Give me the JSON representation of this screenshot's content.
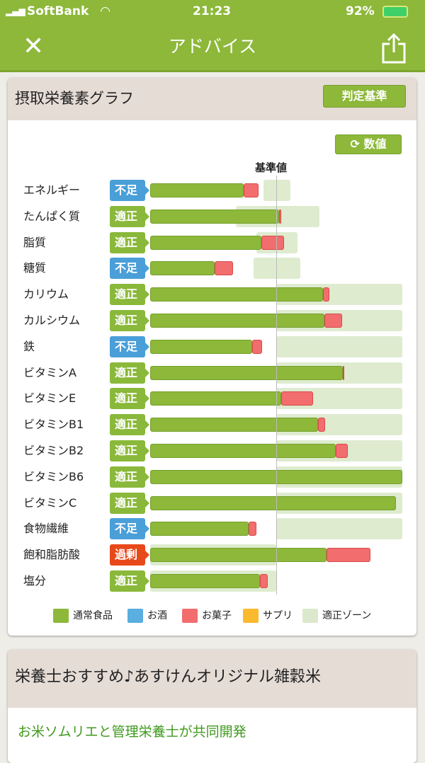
{
  "status": {
    "carrier": "SoftBank",
    "time": "21:23",
    "battery": "92%"
  },
  "nav": {
    "title": "アドバイス",
    "close_icon": "close-icon",
    "share_icon": "share-icon"
  },
  "graph": {
    "title": "摂取栄養素グラフ",
    "criteria_button": "判定基準",
    "values_button": "数値",
    "reference_label": "基準値"
  },
  "colors": {
    "food": "#8db83a",
    "alcohol": "#5aaee0",
    "snack": "#f26d6d",
    "supplement": "#fbb92d",
    "zone": "#dce8cc",
    "shortage": "#4a9fd8",
    "adequate": "#8ab83a",
    "excess": "#e8491a"
  },
  "chart_data": {
    "type": "bar",
    "stacked": true,
    "unit": "% of reference",
    "xlim": [
      0,
      200
    ],
    "reference": 100,
    "categories": [
      "エネルギー",
      "たんぱく質",
      "脂質",
      "糖質",
      "カリウム",
      "カルシウム",
      "鉄",
      "ビタミンA",
      "ビタミンE",
      "ビタミンB1",
      "ビタミンB2",
      "ビタミンB6",
      "ビタミンC",
      "食物繊維",
      "飽和脂肪酸",
      "塩分"
    ],
    "judgements": [
      "不足",
      "適正",
      "適正",
      "不足",
      "適正",
      "適正",
      "不足",
      "適正",
      "適正",
      "適正",
      "適正",
      "適正",
      "適正",
      "不足",
      "過剰",
      "適正"
    ],
    "series": [
      {
        "name": "通常食品",
        "values": [
          74,
          102,
          88,
          51,
          137,
          138,
          81,
          153,
          104,
          133,
          147,
          200,
          195,
          78,
          140,
          87
        ]
      },
      {
        "name": "お菓子",
        "values": [
          12,
          2,
          18,
          15,
          5,
          14,
          8,
          1,
          25,
          6,
          10,
          0,
          0,
          6,
          35,
          6
        ]
      }
    ],
    "zones": [
      [
        90,
        111
      ],
      [
        68,
        134
      ],
      [
        84,
        117
      ],
      [
        82,
        119
      ],
      [
        100,
        200
      ],
      [
        100,
        200
      ],
      [
        100,
        200
      ],
      [
        100,
        200
      ],
      [
        100,
        200
      ],
      [
        100,
        200
      ],
      [
        100,
        200
      ],
      [
        100,
        200
      ],
      [
        100,
        200
      ],
      [
        100,
        200
      ],
      [
        0,
        100
      ],
      [
        0,
        100
      ]
    ],
    "legend": [
      "通常食品",
      "お酒",
      "お菓子",
      "サプリ",
      "適正ゾーン"
    ]
  },
  "promo": {
    "title": "栄養士おすすめ♪あすけんオリジナル雑穀米",
    "subtitle": "お米ソムリエと管理栄養士が共同開発"
  }
}
